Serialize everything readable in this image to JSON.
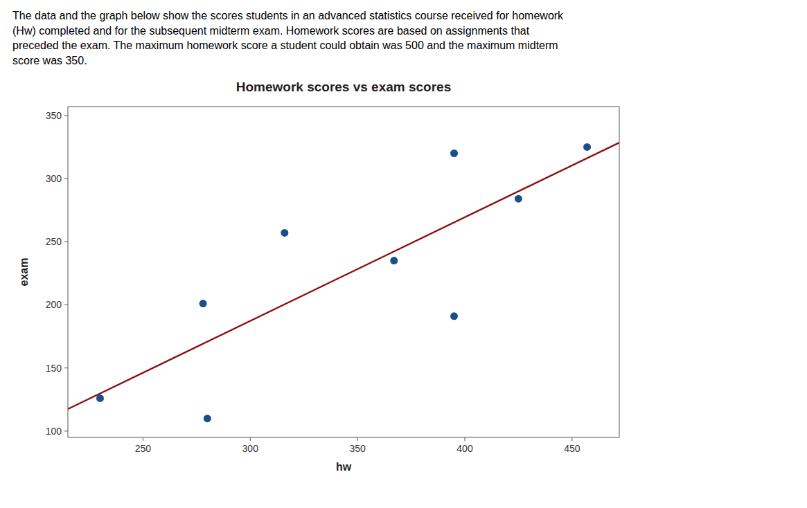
{
  "paragraph": "The data and the graph below show the scores students in an advanced statistics course received for homework\n(Hw) completed and for the subsequent midterm exam. Homework scores are based on assignments that\npreceded the exam. The maximum homework score a student could obtain was 500 and the maximum midterm\nscore was 350.",
  "chart_data": {
    "type": "scatter",
    "title": "Homework scores vs exam scores",
    "x_label": "hw",
    "y_label": "exam",
    "series": [
      {
        "type": "scatter",
        "color": "#1a4f8a",
        "x": [
          230,
          278,
          280,
          316,
          367,
          395,
          395,
          425,
          457
        ],
        "values": [
          126,
          201,
          110,
          257,
          235,
          320,
          191,
          284,
          325
        ]
      },
      {
        "type": "line",
        "color": "#8B1010",
        "x": [
          215,
          472
        ],
        "values": [
          117.46274,
          328.47407
        ]
      }
    ],
    "xlim": [
      215,
      472
    ],
    "ylim": [
      95,
      357
    ],
    "xticks": [
      250,
      300,
      350,
      400,
      450
    ],
    "yticks": [
      100,
      150,
      200,
      250,
      300,
      350
    ],
    "grid": false
  }
}
